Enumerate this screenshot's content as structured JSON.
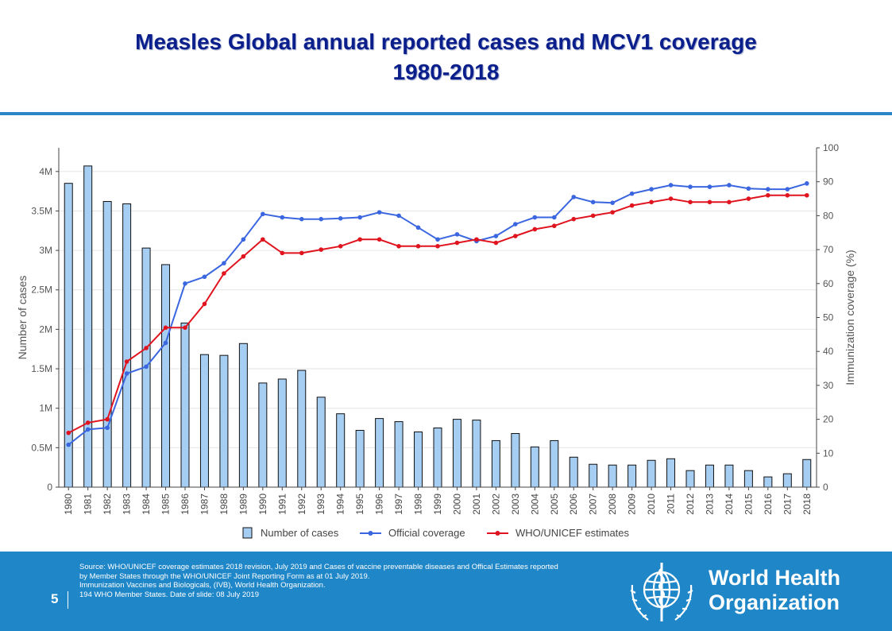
{
  "slide": {
    "title_line1": "Measles Global annual reported cases and MCV1 coverage",
    "title_line2": "1980-2018",
    "page_number": "5",
    "colors": {
      "title": "#0a1e8c",
      "rule": "#2a86c6",
      "footer": "#1f86c8",
      "bar_fill": "#a6cdf2",
      "bar_stroke": "#111111",
      "official": "#3a66e0",
      "who": "#e0141e"
    }
  },
  "footer": {
    "source_lines": [
      "Source: WHO/UNICEF   coverage estimates 2018 revision, July 2019 and  Cases of vaccine preventable diseases and Offical Estimates reported",
      "by Member States through the WHO/UNICEF  Joint Reporting Form as at 01 July 2019.",
      "Immunization  Vaccines and Biologicals, (IVB), World Health Organization.",
      "194 WHO Member States. Date of slide: 08 July 2019"
    ],
    "org_line1": "World Health",
    "org_line2": "Organization",
    "logo_icon": "who-emblem-icon"
  },
  "chart_data": {
    "type": "bar+line",
    "title": "Measles Global annual reported cases and MCV1 coverage 1980-2018",
    "categories": [
      "1980",
      "1981",
      "1982",
      "1983",
      "1984",
      "1985",
      "1986",
      "1987",
      "1988",
      "1989",
      "1990",
      "1991",
      "1992",
      "1993",
      "1994",
      "1995",
      "1996",
      "1997",
      "1998",
      "1999",
      "2000",
      "2001",
      "2002",
      "2003",
      "2004",
      "2005",
      "2006",
      "2007",
      "2008",
      "2009",
      "2010",
      "2011",
      "2012",
      "2013",
      "2014",
      "2015",
      "2016",
      "2017",
      "2018"
    ],
    "ylabel_left": "Number of cases",
    "ylabel_right": "Immunization coverage (%)",
    "ylim_left": [
      0,
      4300000
    ],
    "ylim_right": [
      0,
      100
    ],
    "yticks_left": [
      {
        "v": 0,
        "label": "0"
      },
      {
        "v": 500000,
        "label": "0.5M"
      },
      {
        "v": 1000000,
        "label": "1M"
      },
      {
        "v": 1500000,
        "label": "1.5M"
      },
      {
        "v": 2000000,
        "label": "2M"
      },
      {
        "v": 2500000,
        "label": "2.5M"
      },
      {
        "v": 3000000,
        "label": "3M"
      },
      {
        "v": 3500000,
        "label": "3.5M"
      },
      {
        "v": 4000000,
        "label": "4M"
      }
    ],
    "yticks_right": [
      {
        "v": 0,
        "label": "0"
      },
      {
        "v": 10,
        "label": "10"
      },
      {
        "v": 20,
        "label": "20"
      },
      {
        "v": 30,
        "label": "30"
      },
      {
        "v": 40,
        "label": "40"
      },
      {
        "v": 50,
        "label": "50"
      },
      {
        "v": 60,
        "label": "60"
      },
      {
        "v": 70,
        "label": "70"
      },
      {
        "v": 80,
        "label": "80"
      },
      {
        "v": 90,
        "label": "90"
      },
      {
        "v": 100,
        "label": "100"
      }
    ],
    "grid": true,
    "legend_position": "bottom",
    "series": [
      {
        "name": "Number of cases",
        "type": "bar",
        "axis": "left",
        "color": "#a6cdf2",
        "values": [
          3850000,
          4070000,
          3620000,
          3590000,
          3030000,
          2820000,
          2080000,
          1680000,
          1670000,
          1820000,
          1320000,
          1370000,
          1480000,
          1140000,
          930000,
          720000,
          870000,
          830000,
          700000,
          750000,
          860000,
          850000,
          590000,
          680000,
          510000,
          590000,
          380000,
          290000,
          280000,
          280000,
          340000,
          360000,
          210000,
          280000,
          280000,
          210000,
          130000,
          170000,
          350000
        ]
      },
      {
        "name": "Official coverage",
        "type": "line",
        "axis": "right",
        "color": "#3a66e0",
        "values": [
          12.5,
          17,
          17.5,
          33.5,
          35.5,
          42.5,
          60,
          62,
          66,
          73,
          80.5,
          79.5,
          79,
          79,
          79.2,
          79.5,
          81,
          80,
          76.5,
          73,
          74.5,
          72.5,
          74,
          77.5,
          79.5,
          79.5,
          85.5,
          84,
          83.8,
          86.5,
          87.8,
          89,
          88.5,
          88.5,
          89,
          88,
          87.8,
          87.8,
          89.5
        ]
      },
      {
        "name": "WHO/UNICEF estimates",
        "type": "line",
        "axis": "right",
        "color": "#e0141e",
        "values": [
          16,
          19,
          20,
          37,
          41,
          47,
          47,
          54,
          63,
          68,
          73,
          69,
          69,
          70,
          71,
          73,
          73,
          71,
          71,
          71,
          72,
          73,
          72,
          74,
          76,
          77,
          79,
          80,
          81,
          83,
          84,
          85,
          84,
          84,
          84,
          85,
          86,
          86,
          86
        ]
      }
    ]
  }
}
